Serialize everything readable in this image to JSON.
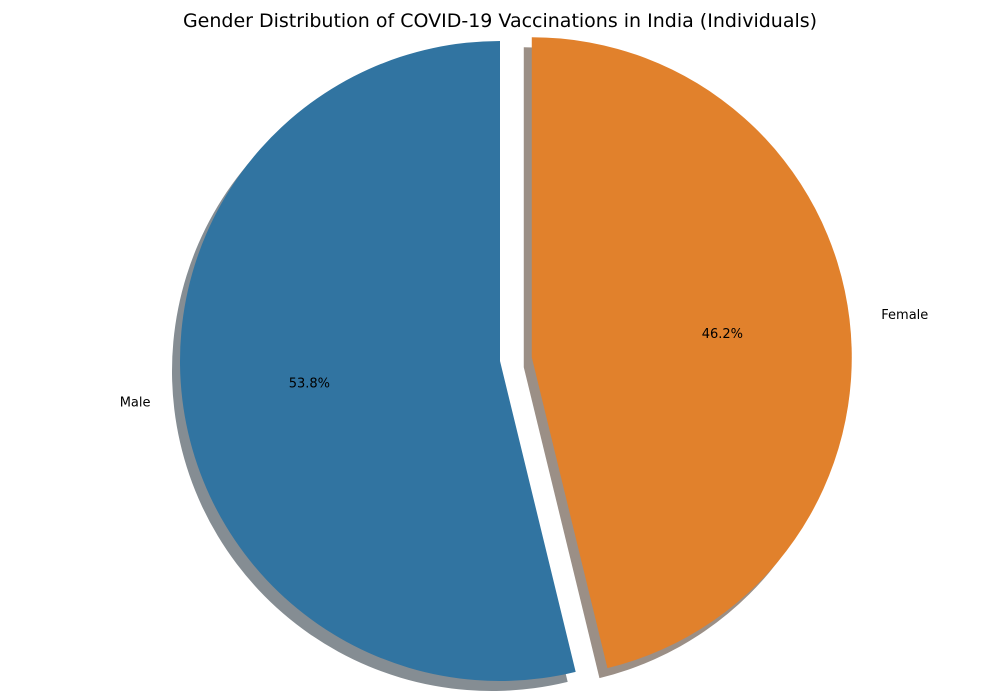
{
  "chart_data": {
    "type": "pie",
    "title": "Gender Distribution of COVID-19 Vaccinations in India (Individuals)",
    "slices": [
      {
        "label": "Male",
        "value": 53.8,
        "pct_label": "53.8%",
        "color": "#3174a1",
        "explode": false
      },
      {
        "label": "Female",
        "value": 46.2,
        "pct_label": "46.2%",
        "color": "#e1812c",
        "explode": true
      }
    ],
    "start_angle": "top (90°)",
    "direction": "counter-clockwise",
    "shadow": true,
    "legend": "none"
  }
}
